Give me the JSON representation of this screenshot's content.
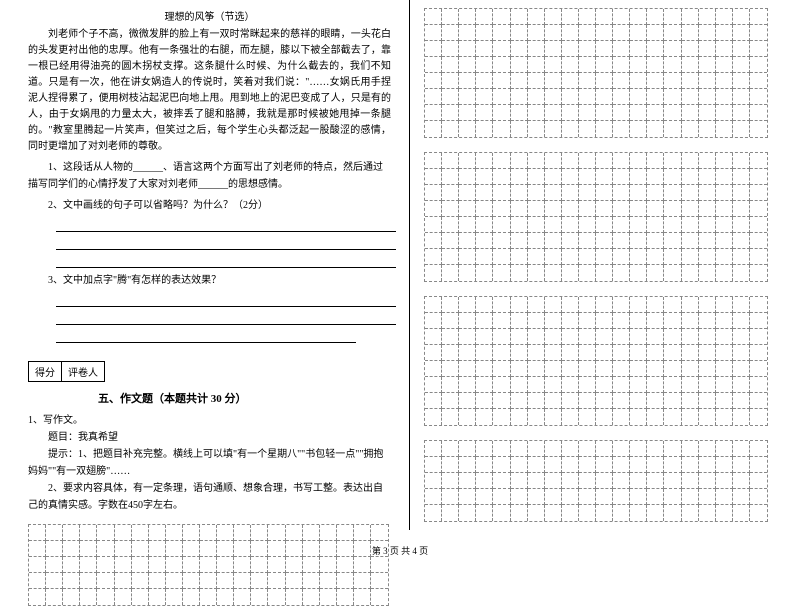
{
  "passage": {
    "title": "理想的风筝（节选）",
    "text": "刘老师个子不高，微微发胖的脸上有一双时常眯起来的慈祥的眼睛，一头花白的头发更衬出他的忠厚。他有一条强壮的右腿，而左腿，膝以下被全部截去了，靠一根已经用得油亮的圆木拐杖支撑。这条腿什么时候、为什么截去的，我们不知道。只是有一次，他在讲女娲造人的传说时，笑着对我们说：\"……女娲氏用手捏泥人捏得累了，便用树枝沾起泥巴向地上甩。甩到地上的泥巴变成了人，只是有的人，由于女娲甩的力量太大，被摔丢了腿和胳膊，我就是那时候被她甩掉一条腿的。\"教室里腾起一片笑声，但笑过之后，每个学生心头都泛起一股酸涩的感情，同时更增加了对刘老师的尊敬。"
  },
  "questions": {
    "q1": "1、这段话从人物的______、语言这两个方面写出了刘老师的特点，然后通过描写同学们的心情抒发了大家对刘老师______的思想感情。",
    "q2": "2、文中画线的句子可以省略吗？为什么？（2分）",
    "q3": "3、文中加点字\"腾\"有怎样的表达效果？"
  },
  "scoreBox": {
    "left": "得分",
    "right": "评卷人"
  },
  "section5": {
    "title": "五、作文题（本题共计 30 分）",
    "num": "1、写作文。",
    "topic_label": "　　题目：我真希望",
    "hint1": "　　提示：1、把题目补充完整。横线上可以填\"有一个星期八\"\"书包轻一点\"\"拥抱妈妈\"\"有一双翅膀\"……",
    "hint2": "　　2、要求内容具体，有一定条理，语句通顺、想象合理，书写工整。表达出自己的真情实感。字数在450字左右。"
  },
  "footer": "第 3 页 共 4 页",
  "grids": {
    "rightTop": {
      "rows": 8,
      "cols": 20,
      "cellW": 17.2,
      "cellH": 16
    },
    "rightMid1": {
      "rows": 8,
      "cols": 20,
      "cellW": 17.2,
      "cellH": 16
    },
    "rightMid2": {
      "rows": 8,
      "cols": 20,
      "cellW": 17.2,
      "cellH": 16
    },
    "leftBottom": {
      "rows": 5,
      "cols": 21,
      "cellW": 17.2,
      "cellH": 16
    },
    "rightBottom": {
      "rows": 5,
      "cols": 20,
      "cellW": 17.2,
      "cellH": 16
    }
  },
  "colors": {
    "border": "#888888",
    "text": "#000000",
    "bg": "#ffffff"
  }
}
